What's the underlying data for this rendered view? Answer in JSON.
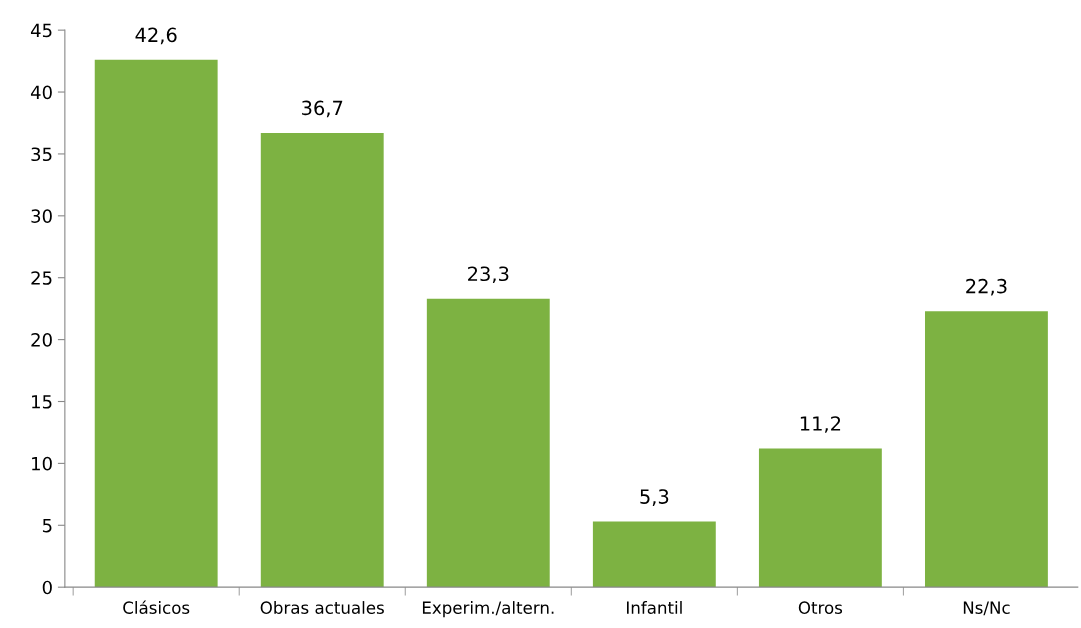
{
  "chart_data": {
    "type": "bar",
    "categories": [
      "Clásicos",
      "Obras actuales",
      "Experim./altern.",
      "Infantil",
      "Otros",
      "Ns/Nc"
    ],
    "values": [
      42.6,
      36.7,
      23.3,
      5.3,
      11.2,
      22.3
    ],
    "value_labels": [
      "42,6",
      "36,7",
      "23,3",
      "5,3",
      "11,2",
      "22,3"
    ],
    "color": "#7db242",
    "ylim": [
      0,
      45
    ],
    "yticks": [
      0,
      5,
      10,
      15,
      20,
      25,
      30,
      35,
      40,
      45
    ],
    "grid": false,
    "legend": false
  }
}
